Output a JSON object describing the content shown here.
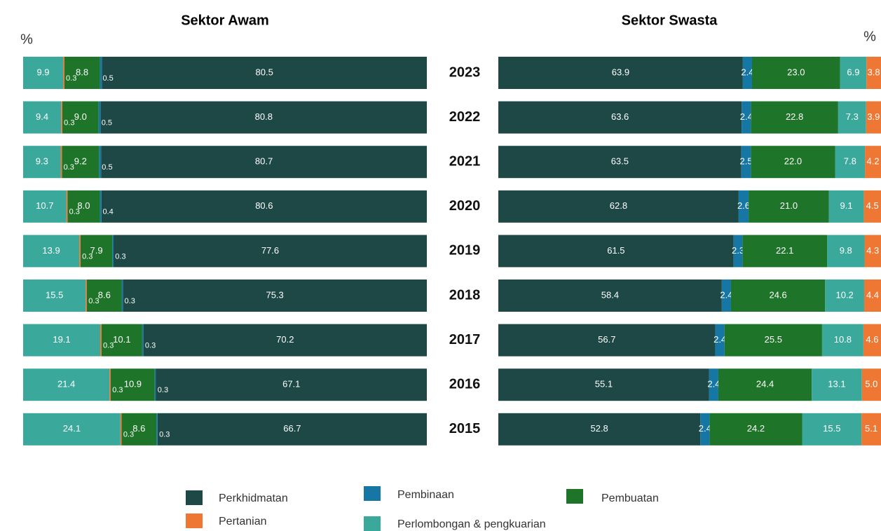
{
  "chart_data": [
    {
      "type": "stacked-bar",
      "title": "Sektor Awam",
      "unit": "%",
      "direction": "right-to-left",
      "xlim": [
        0,
        100
      ],
      "series": [
        {
          "name": "Perkhidmatan",
          "color": "#1d4846",
          "values": [
            80.5,
            80.8,
            80.7,
            80.6,
            77.6,
            75.3,
            70.2,
            67.1,
            66.7
          ],
          "value_labels": [
            "80.5",
            "80.8",
            "80.7",
            "80.6",
            "77.6",
            "75.3",
            "70.2",
            "67.1",
            "66.7"
          ]
        },
        {
          "name": "Pembinaan",
          "color": "#1777a4",
          "values": [
            0.5,
            0.5,
            0.5,
            0.4,
            0.3,
            0.3,
            0.3,
            0.3,
            0.3
          ],
          "value_labels": [
            "0.5",
            "0.5",
            "0.5",
            "0.4",
            "0.3",
            "0.3",
            "0.3",
            "0.3",
            "0.3"
          ]
        },
        {
          "name": "Pembuatan",
          "color": "#1e7428",
          "values": [
            8.8,
            9.0,
            9.2,
            8.0,
            7.9,
            8.6,
            10.1,
            10.9,
            8.6
          ],
          "value_labels": [
            "8.8",
            "9.0",
            "9.2",
            "8.0",
            "7.9",
            "8.6",
            "10.1",
            "10.9",
            "8.6"
          ]
        },
        {
          "name": "Pertanian",
          "color": "#ee7833",
          "values": [
            0.3,
            0.3,
            0.3,
            0.3,
            0.3,
            0.3,
            0.3,
            0.3,
            0.3
          ],
          "value_labels": [
            "0.3",
            "0.3",
            "0.3",
            "0.3",
            "0.3",
            "0.3",
            "0.3",
            "0.3",
            "0.3"
          ]
        },
        {
          "name": "Perlombongan & pengkuarian",
          "color": "#3aa99c",
          "values": [
            9.9,
            9.4,
            9.3,
            10.7,
            13.9,
            15.5,
            19.1,
            21.4,
            24.1
          ],
          "value_labels": [
            "9.9",
            "9.4",
            "9.3",
            "10.7",
            "13.9",
            "15.5",
            "19.1",
            "21.4",
            "24.1"
          ]
        }
      ]
    },
    {
      "type": "stacked-bar",
      "title": "Sektor Swasta",
      "unit": "%",
      "direction": "left-to-right",
      "xlim": [
        0,
        100
      ],
      "categories": [
        "2023",
        "2022",
        "2021",
        "2020",
        "2019",
        "2018",
        "2017",
        "2016",
        "2015"
      ],
      "series": [
        {
          "name": "Perkhidmatan",
          "color": "#1d4846",
          "values": [
            63.9,
            63.6,
            63.5,
            62.8,
            61.5,
            58.4,
            56.7,
            55.1,
            52.8
          ],
          "value_labels": [
            "63.9",
            "63.6",
            "63.5",
            "62.8",
            "61.5",
            "58.4",
            "56.7",
            "55.1",
            "52.8"
          ]
        },
        {
          "name": "Pembinaan",
          "color": "#1777a4",
          "values": [
            2.4,
            2.4,
            2.5,
            2.6,
            2.3,
            2.4,
            2.4,
            2.4,
            2.4
          ],
          "value_labels": [
            "2.4",
            "2.4",
            "2.5",
            "2.6",
            "2.3",
            "2.4",
            "2.4",
            "2.4",
            "2.4"
          ]
        },
        {
          "name": "Pembuatan",
          "color": "#1e7428",
          "values": [
            23.0,
            22.8,
            22.0,
            21.0,
            22.1,
            24.6,
            25.5,
            24.4,
            24.2
          ],
          "value_labels": [
            "23.0",
            "22.8",
            "22.0",
            "21.0",
            "22.1",
            "24.6",
            "25.5",
            "24.4",
            "24.2"
          ]
        },
        {
          "name": "Perlombongan & pengkuarian",
          "color": "#3aa99c",
          "values": [
            6.9,
            7.3,
            7.8,
            9.1,
            9.8,
            10.2,
            10.8,
            13.1,
            15.5
          ],
          "value_labels": [
            "6.9",
            "7.3",
            "7.8",
            "9.1",
            "9.8",
            "10.2",
            "10.8",
            "13.1",
            "15.5"
          ]
        },
        {
          "name": "Pertanian",
          "color": "#ee7833",
          "values": [
            3.8,
            3.9,
            4.2,
            4.5,
            4.3,
            4.4,
            4.6,
            5.0,
            5.1
          ],
          "value_labels": [
            "3.8",
            "3.9",
            "4.2",
            "4.5",
            "4.3",
            "4.4",
            "4.6",
            "5.0",
            "5.1"
          ]
        }
      ]
    }
  ]
}
